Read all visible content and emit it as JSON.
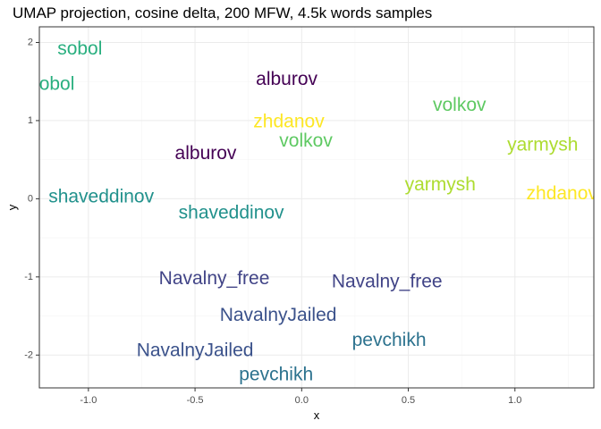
{
  "chart_data": {
    "type": "scatter",
    "title": "UMAP projection, cosine delta, 200 MFW, 4.5k words samples",
    "xlabel": "x",
    "ylabel": "y",
    "xlim": [
      -1.23,
      1.37
    ],
    "ylim": [
      -2.42,
      2.2
    ],
    "x_major_ticks": [
      -1.0,
      -0.5,
      0.0,
      0.5,
      1.0
    ],
    "x_tick_labels": [
      "-1.0",
      "-0.5",
      "0.0",
      "0.5",
      "1.0"
    ],
    "y_major_ticks": [
      -2,
      -1,
      0,
      1,
      2
    ],
    "y_tick_labels": [
      "-2",
      "-1",
      "0",
      "1",
      "2"
    ],
    "x_minor_ticks": [
      -0.75,
      -0.25,
      0.25,
      0.75,
      1.25
    ],
    "y_minor_ticks": [
      -1.5,
      -0.5,
      0.5,
      1.5
    ],
    "grid": true,
    "legend": "none",
    "points": [
      {
        "label": "sobol",
        "x": -1.04,
        "y": 1.92,
        "color": "#29af7f"
      },
      {
        "label": "sobol",
        "x": -1.17,
        "y": 1.47,
        "color": "#29af7f"
      },
      {
        "label": "alburov",
        "x": -0.07,
        "y": 1.53,
        "color": "#440154"
      },
      {
        "label": "alburov",
        "x": -0.45,
        "y": 0.58,
        "color": "#440154"
      },
      {
        "label": "volkov",
        "x": 0.74,
        "y": 1.2,
        "color": "#5ec962"
      },
      {
        "label": "volkov",
        "x": 0.02,
        "y": 0.74,
        "color": "#5ec962"
      },
      {
        "label": "zhdanov",
        "x": -0.06,
        "y": 0.99,
        "color": "#fde725"
      },
      {
        "label": "zhdanov",
        "x": 1.22,
        "y": 0.07,
        "color": "#fde725"
      },
      {
        "label": "yarmysh",
        "x": 1.13,
        "y": 0.69,
        "color": "#addc30"
      },
      {
        "label": "yarmysh",
        "x": 0.65,
        "y": 0.18,
        "color": "#addc30"
      },
      {
        "label": "shaveddinov",
        "x": -0.94,
        "y": 0.03,
        "color": "#21918c"
      },
      {
        "label": "shaveddinov",
        "x": -0.33,
        "y": -0.18,
        "color": "#21918c"
      },
      {
        "label": "Navalny_free",
        "x": -0.41,
        "y": -1.02,
        "color": "#414487"
      },
      {
        "label": "Navalny_free",
        "x": 0.4,
        "y": -1.06,
        "color": "#414487"
      },
      {
        "label": "NavalnyJailed",
        "x": -0.11,
        "y": -1.49,
        "color": "#3b528b"
      },
      {
        "label": "NavalnyJailed",
        "x": -0.5,
        "y": -1.94,
        "color": "#3b528b"
      },
      {
        "label": "pevchikh",
        "x": 0.41,
        "y": -1.81,
        "color": "#2c728e"
      },
      {
        "label": "pevchikh",
        "x": -0.12,
        "y": -2.25,
        "color": "#2c728e"
      }
    ]
  }
}
